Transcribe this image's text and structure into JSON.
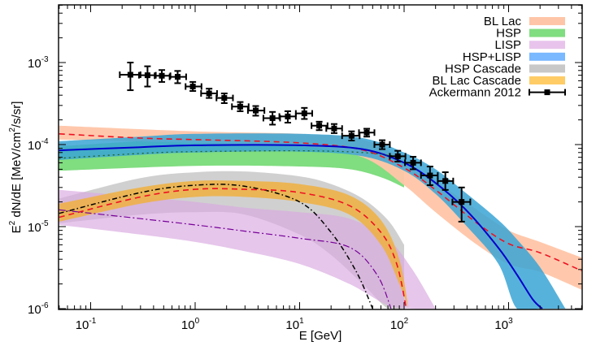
{
  "chart_data": {
    "type": "line",
    "title": "",
    "xlabel": "E [GeV]",
    "ylabel_base": "E",
    "ylabel_sup": "2",
    "ylabel_rest": " dN/dE [MeV/cm",
    "ylabel_sup2": "2",
    "ylabel_end": "/s/sr]",
    "xscale": "log",
    "yscale": "log",
    "xlim": [
      0.05,
      5000
    ],
    "ylim": [
      1e-06,
      0.005
    ],
    "grid": false,
    "legend_position": "top-right",
    "x_ticks": [
      {
        "base": "10",
        "exp": "-1",
        "value": 0.1
      },
      {
        "base": "10",
        "exp": "0",
        "value": 1
      },
      {
        "base": "10",
        "exp": "1",
        "value": 10
      },
      {
        "base": "10",
        "exp": "2",
        "value": 100
      },
      {
        "base": "10",
        "exp": "3",
        "value": 1000
      }
    ],
    "y_ticks": [
      {
        "base": "10",
        "exp": "-3",
        "value": 0.001
      },
      {
        "base": "10",
        "exp": "-4",
        "value": 0.0001
      },
      {
        "base": "10",
        "exp": "-5",
        "value": 1e-05
      },
      {
        "base": "10",
        "exp": "-6",
        "value": 1e-06
      }
    ],
    "legend": [
      {
        "label": "BL Lac",
        "color": "#ffc5a8",
        "kind": "band"
      },
      {
        "label": "HSP",
        "color": "#80dd80",
        "kind": "band"
      },
      {
        "label": "LISP",
        "color": "#e8c4ec",
        "kind": "band"
      },
      {
        "label": "HSP+LISP",
        "color": "#7ab8ff",
        "kind": "band"
      },
      {
        "label": "HSP Cascade",
        "color": "#c8c8c8",
        "kind": "band"
      },
      {
        "label": "BL Lac Cascade",
        "color": "#ffcc66",
        "kind": "band"
      },
      {
        "label": "Ackermann 2012",
        "color": "#000000",
        "kind": "errorbar"
      }
    ],
    "bands": [
      {
        "name": "BL Lac Cascade band (grey)",
        "color": "#c8c8c8",
        "opacity": 0.85,
        "x": [
          0.05,
          0.3,
          1,
          3,
          10,
          20,
          40,
          70,
          100
        ],
        "upper": [
          2.2e-05,
          3.9e-05,
          4.6e-05,
          4.7e-05,
          4.1e-05,
          3.3e-05,
          2.2e-05,
          1.2e-05,
          6e-06
        ],
        "lower": [
          1.1e-05,
          1.4e-05,
          1.5e-05,
          1.4e-05,
          8e-06,
          4.5e-06,
          2e-06,
          1e-06,
          1e-06
        ]
      },
      {
        "name": "LISP band",
        "color": "#d9a8e0",
        "opacity": 0.65,
        "x": [
          0.05,
          0.3,
          1,
          3,
          10,
          30,
          70,
          120,
          200
        ],
        "upper": [
          2.8e-05,
          2.3e-05,
          2e-05,
          1.7e-05,
          1.5e-05,
          1.25e-05,
          7e-06,
          3e-06,
          1e-06
        ],
        "lower": [
          1.05e-05,
          8e-06,
          6.5e-06,
          5e-06,
          3.5e-06,
          2e-06,
          1.1e-06,
          1e-06,
          1e-06
        ]
      },
      {
        "name": "HSP Cascade band (orange)",
        "color": "#f0b040",
        "opacity": 0.85,
        "x": [
          0.05,
          0.3,
          1,
          3,
          10,
          30,
          60,
          90,
          110
        ],
        "upper": [
          1.9e-05,
          3e-05,
          3.6e-05,
          3.6e-05,
          3.3e-05,
          2.4e-05,
          1.2e-05,
          4e-06,
          1e-06
        ],
        "lower": [
          1.15e-05,
          1.9e-05,
          2.3e-05,
          2.3e-05,
          2e-05,
          1.4e-05,
          6e-06,
          2e-06,
          1e-06
        ]
      },
      {
        "name": "HSP band (green)",
        "color": "#80dd80",
        "opacity": 1.0,
        "x": [
          0.05,
          1,
          10,
          30,
          60,
          100
        ],
        "upper": [
          9.5e-05,
          0.00012,
          0.000125,
          0.000115,
          9e-05,
          6e-05
        ],
        "lower": [
          4.8e-05,
          5.5e-05,
          5.4e-05,
          5e-05,
          4e-05,
          3e-05
        ]
      },
      {
        "name": "BL Lac band",
        "color": "#ffc5a8",
        "opacity": 0.95,
        "x": [
          0.05,
          1,
          10,
          40,
          100,
          200,
          500,
          1000,
          2000,
          5000
        ],
        "upper": [
          0.00017,
          0.000145,
          0.000135,
          0.000115,
          6.5e-05,
          3.6e-05,
          1.6e-05,
          9e-06,
          6.5e-06,
          4.2e-06
        ],
        "lower": [
          0.000115,
          0.000105,
          9.5e-05,
          7e-05,
          3.2e-05,
          1.5e-05,
          6e-06,
          3.5e-06,
          2.8e-06,
          1.7e-06
        ]
      },
      {
        "name": "HSP+LISP band",
        "color": "#3aa5d5",
        "opacity": 0.85,
        "x": [
          0.05,
          0.3,
          1,
          10,
          40,
          100,
          200,
          400,
          800,
          1200,
          2000,
          3500
        ],
        "upper": [
          0.00011,
          0.000125,
          0.000135,
          0.000135,
          0.00012,
          8e-05,
          5e-05,
          2.5e-05,
          1.2e-05,
          7e-06,
          3.2e-06,
          1e-06
        ],
        "lower": [
          6.5e-05,
          7.5e-05,
          8e-05,
          8.2e-05,
          7.2e-05,
          4.8e-05,
          2.5e-05,
          1e-05,
          3.5e-06,
          1e-06,
          1e-06,
          1e-06
        ]
      }
    ],
    "series": [
      {
        "name": "BL Lac (red dashed)",
        "color": "#ee1122",
        "dash": "7,5",
        "width": 1.6,
        "x": [
          0.05,
          0.3,
          1,
          10,
          40,
          100,
          200,
          500,
          1000,
          2000,
          5000
        ],
        "y": [
          0.000135,
          0.00012,
          0.000115,
          0.000105,
          8.6e-05,
          5.2e-05,
          2.8e-05,
          1.1e-05,
          6.2e-06,
          4.8e-06,
          2.9e-06
        ]
      },
      {
        "name": "HSP+LISP (blue solid)",
        "color": "#0000cc",
        "dash": "",
        "width": 2,
        "x": [
          0.05,
          0.3,
          1,
          10,
          40,
          100,
          200,
          400,
          800,
          1200,
          1700,
          2100
        ],
        "y": [
          8.5e-05,
          9.3e-05,
          9.8e-05,
          9.8e-05,
          8.8e-05,
          6e-05,
          3.4e-05,
          1.55e-05,
          5.5e-06,
          2.6e-06,
          1.3e-06,
          1e-06
        ]
      },
      {
        "name": "HSP (green dotted)",
        "color": "#226622",
        "dash": "2,4",
        "width": 1.3,
        "x": [
          0.05,
          0.3,
          1,
          10,
          40,
          100
        ],
        "y": [
          6.8e-05,
          7.8e-05,
          8.2e-05,
          8.4e-05,
          8e-05,
          7e-05
        ]
      },
      {
        "name": "BL Lac Cascade (black dash-dot)",
        "color": "#000000",
        "dash": "6,3,1.5,3",
        "width": 1.5,
        "x": [
          0.05,
          0.3,
          1,
          3,
          10,
          20,
          35,
          50
        ],
        "y": [
          1.45e-05,
          2.6e-05,
          3.2e-05,
          3.1e-05,
          2e-05,
          8.5e-06,
          2.8e-06,
          1e-06
        ]
      },
      {
        "name": "HSP Cascade (red dashed)",
        "color": "#ee1122",
        "dash": "7,5",
        "width": 1.6,
        "x": [
          0.05,
          0.3,
          1,
          3,
          10,
          30,
          60,
          85,
          105
        ],
        "y": [
          1.3e-05,
          2.3e-05,
          2.85e-05,
          2.85e-05,
          2.6e-05,
          1.8e-05,
          8.5e-06,
          3.5e-06,
          1e-06
        ]
      },
      {
        "name": "LISP (purple dash-dot)",
        "color": "#770099",
        "dash": "8,3,2,3",
        "width": 1.2,
        "x": [
          0.05,
          0.3,
          1,
          3,
          10,
          30,
          55,
          75
        ],
        "y": [
          1.6e-05,
          1.25e-05,
          1.05e-05,
          8.8e-06,
          7.2e-06,
          5.6e-06,
          2.6e-06,
          1e-06
        ]
      }
    ],
    "data_points": {
      "name": "Ackermann 2012",
      "points": [
        {
          "x": 0.24,
          "y": 0.00071,
          "xlo": 0.19,
          "xhi": 0.3,
          "ylo": 0.00046,
          "yhi": 0.001
        },
        {
          "x": 0.35,
          "y": 0.0007,
          "xlo": 0.29,
          "xhi": 0.42,
          "ylo": 0.00051,
          "yhi": 0.0009
        },
        {
          "x": 0.48,
          "y": 0.00069,
          "xlo": 0.41,
          "xhi": 0.58,
          "ylo": 0.00058,
          "yhi": 0.00081
        },
        {
          "x": 0.68,
          "y": 0.00067,
          "xlo": 0.57,
          "xhi": 0.82,
          "ylo": 0.00056,
          "yhi": 0.00079
        },
        {
          "x": 0.95,
          "y": 0.00051,
          "xlo": 0.81,
          "xhi": 1.15,
          "ylo": 0.00045,
          "yhi": 0.00058
        },
        {
          "x": 1.36,
          "y": 0.00042,
          "xlo": 1.14,
          "xhi": 1.62,
          "ylo": 0.00037,
          "yhi": 0.00048
        },
        {
          "x": 1.9,
          "y": 0.00037,
          "xlo": 1.6,
          "xhi": 2.3,
          "ylo": 0.00032,
          "yhi": 0.00042
        },
        {
          "x": 2.7,
          "y": 0.00029,
          "xlo": 2.25,
          "xhi": 3.25,
          "ylo": 0.000255,
          "yhi": 0.00033
        },
        {
          "x": 3.8,
          "y": 0.00026,
          "xlo": 3.2,
          "xhi": 4.6,
          "ylo": 0.000225,
          "yhi": 0.000295
        },
        {
          "x": 5.5,
          "y": 0.00021,
          "xlo": 4.5,
          "xhi": 6.5,
          "ylo": 0.000175,
          "yhi": 0.00025
        },
        {
          "x": 7.7,
          "y": 0.00022,
          "xlo": 6.4,
          "xhi": 9.2,
          "ylo": 0.000185,
          "yhi": 0.000255
        },
        {
          "x": 11.1,
          "y": 0.00024,
          "xlo": 9.2,
          "xhi": 13.2,
          "ylo": 0.000205,
          "yhi": 0.00028
        },
        {
          "x": 15.4,
          "y": 0.00017,
          "xlo": 13.0,
          "xhi": 18.5,
          "ylo": 0.00015,
          "yhi": 0.00019
        },
        {
          "x": 21.4,
          "y": 0.000157,
          "xlo": 18.0,
          "xhi": 25.5,
          "ylo": 0.000138,
          "yhi": 0.000178
        },
        {
          "x": 31.4,
          "y": 0.000128,
          "xlo": 25.5,
          "xhi": 37.5,
          "ylo": 0.000112,
          "yhi": 0.000145
        },
        {
          "x": 43.9,
          "y": 0.00014,
          "xlo": 37.0,
          "xhi": 52.0,
          "ylo": 0.000125,
          "yhi": 0.000156
        },
        {
          "x": 61.7,
          "y": 0.0001,
          "xlo": 52.0,
          "xhi": 73.0,
          "ylo": 8.8e-05,
          "yhi": 0.000113
        },
        {
          "x": 87,
          "y": 7.2e-05,
          "xlo": 73,
          "xhi": 103,
          "ylo": 6.2e-05,
          "yhi": 8.4e-05
        },
        {
          "x": 122,
          "y": 6e-05,
          "xlo": 102,
          "xhi": 145,
          "ylo": 5e-05,
          "yhi": 7.1e-05
        },
        {
          "x": 177,
          "y": 4.2e-05,
          "xlo": 145,
          "xhi": 210,
          "ylo": 3.2e-05,
          "yhi": 5.4e-05
        },
        {
          "x": 248,
          "y": 3.6e-05,
          "xlo": 210,
          "xhi": 295,
          "ylo": 2.8e-05,
          "yhi": 4.6e-05
        },
        {
          "x": 355,
          "y": 2e-05,
          "xlo": 290,
          "xhi": 430,
          "ylo": 1.15e-05,
          "yhi": 3e-05
        }
      ]
    }
  }
}
